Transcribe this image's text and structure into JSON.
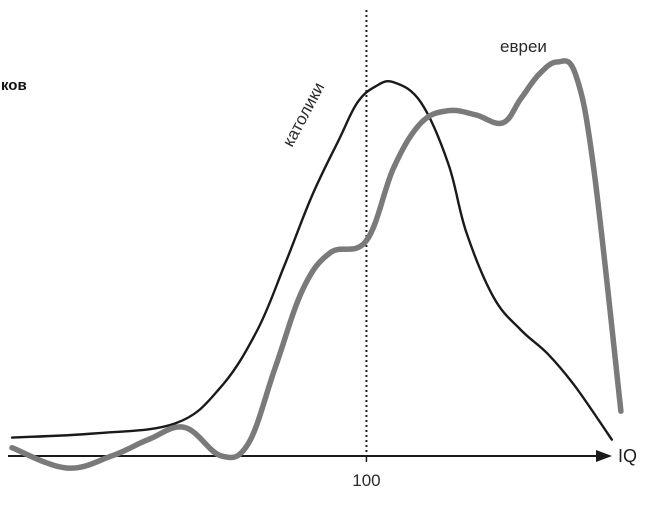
{
  "fragment_text": "ков",
  "chart_data": {
    "type": "line",
    "xlabel": "IQ",
    "ylabel": "",
    "x_ticks": [
      100
    ],
    "x_tick_labels": [
      "100"
    ],
    "reference_line": {
      "x": 100,
      "style": "dotted"
    },
    "xlim": [
      61,
      129
    ],
    "ylim": [
      0,
      1
    ],
    "grid": false,
    "series": [
      {
        "name": "католики",
        "color": "#1a1a1a",
        "x": [
          61,
          70,
          79,
          84,
          88,
          91,
          94,
          97,
          99,
          101,
          103,
          106,
          109,
          111,
          114,
          117,
          120,
          123,
          127
        ],
        "values": [
          0.075,
          0.085,
          0.11,
          0.2,
          0.34,
          0.5,
          0.67,
          0.81,
          0.9,
          0.94,
          0.95,
          0.9,
          0.75,
          0.58,
          0.42,
          0.34,
          0.28,
          0.2,
          0.07
        ]
      },
      {
        "name": "евреи",
        "color": "#7a7a7a",
        "x": [
          61,
          67,
          72,
          76,
          80,
          84,
          87,
          90,
          93,
          96,
          100,
          103,
          106,
          109,
          112,
          115,
          117,
          119,
          121,
          123,
          125,
          128
        ],
        "values": [
          0.05,
          0.0,
          0.03,
          0.07,
          0.1,
          0.03,
          0.06,
          0.25,
          0.44,
          0.53,
          0.56,
          0.74,
          0.85,
          0.88,
          0.87,
          0.85,
          0.91,
          0.97,
          1.0,
          0.97,
          0.74,
          0.14
        ]
      }
    ]
  }
}
